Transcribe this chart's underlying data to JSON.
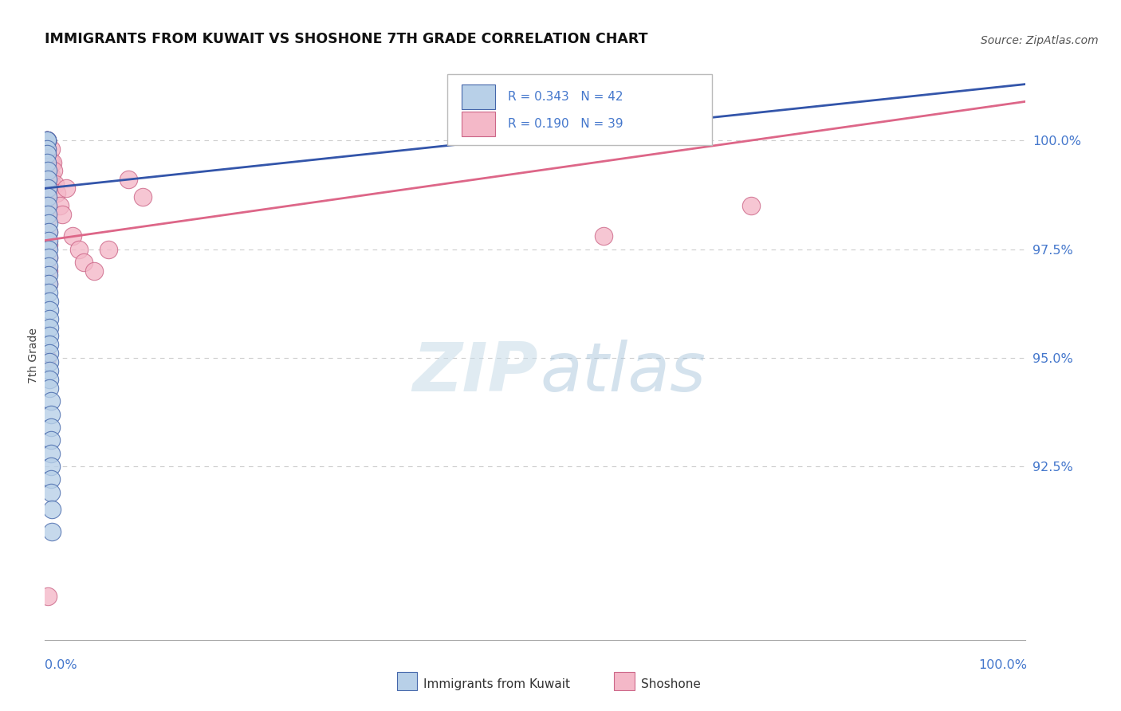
{
  "title": "IMMIGRANTS FROM KUWAIT VS SHOSHONE 7TH GRADE CORRELATION CHART",
  "source": "Source: ZipAtlas.com",
  "ylabel": "7th Grade",
  "legend_series1": "Immigrants from Kuwait",
  "legend_series2": "Shoshone",
  "R1": 0.343,
  "N1": 42,
  "R2": 0.19,
  "N2": 39,
  "blue_face_color": "#b8d0e8",
  "blue_edge_color": "#4466aa",
  "pink_face_color": "#f4b8c8",
  "pink_edge_color": "#cc6688",
  "blue_line_color": "#3355aa",
  "pink_line_color": "#dd6688",
  "watermark_zip": "ZIP",
  "watermark_atlas": "atlas",
  "blue_points": [
    [
      0.002,
      100.0
    ],
    [
      0.002,
      100.0
    ],
    [
      0.002,
      100.0
    ],
    [
      0.002,
      99.8
    ],
    [
      0.002,
      99.7
    ],
    [
      0.002,
      99.5
    ],
    [
      0.003,
      99.3
    ],
    [
      0.003,
      99.1
    ],
    [
      0.003,
      98.9
    ],
    [
      0.003,
      98.7
    ],
    [
      0.003,
      98.5
    ],
    [
      0.003,
      98.3
    ],
    [
      0.004,
      98.1
    ],
    [
      0.004,
      97.9
    ],
    [
      0.004,
      97.7
    ],
    [
      0.004,
      97.5
    ],
    [
      0.004,
      97.3
    ],
    [
      0.004,
      97.1
    ],
    [
      0.004,
      96.9
    ],
    [
      0.004,
      96.7
    ],
    [
      0.004,
      96.5
    ],
    [
      0.005,
      96.3
    ],
    [
      0.005,
      96.1
    ],
    [
      0.005,
      95.9
    ],
    [
      0.005,
      95.7
    ],
    [
      0.005,
      95.5
    ],
    [
      0.005,
      95.3
    ],
    [
      0.005,
      95.1
    ],
    [
      0.005,
      94.9
    ],
    [
      0.005,
      94.7
    ],
    [
      0.005,
      94.5
    ],
    [
      0.005,
      94.3
    ],
    [
      0.006,
      94.0
    ],
    [
      0.006,
      93.7
    ],
    [
      0.006,
      93.4
    ],
    [
      0.006,
      93.1
    ],
    [
      0.006,
      92.8
    ],
    [
      0.006,
      92.5
    ],
    [
      0.006,
      92.2
    ],
    [
      0.006,
      91.9
    ],
    [
      0.007,
      91.5
    ],
    [
      0.007,
      91.0
    ]
  ],
  "pink_points": [
    [
      0.002,
      100.0
    ],
    [
      0.002,
      100.0
    ],
    [
      0.002,
      100.0
    ],
    [
      0.002,
      99.8
    ],
    [
      0.002,
      99.5
    ],
    [
      0.002,
      99.3
    ],
    [
      0.003,
      99.1
    ],
    [
      0.003,
      98.8
    ],
    [
      0.003,
      98.5
    ],
    [
      0.003,
      98.2
    ],
    [
      0.004,
      97.9
    ],
    [
      0.004,
      97.6
    ],
    [
      0.004,
      97.3
    ],
    [
      0.004,
      97.0
    ],
    [
      0.004,
      96.7
    ],
    [
      0.005,
      99.5
    ],
    [
      0.005,
      99.2
    ],
    [
      0.005,
      98.9
    ],
    [
      0.006,
      99.8
    ],
    [
      0.006,
      99.5
    ],
    [
      0.006,
      99.2
    ],
    [
      0.007,
      99.0
    ],
    [
      0.008,
      99.5
    ],
    [
      0.009,
      99.3
    ],
    [
      0.01,
      99.0
    ],
    [
      0.012,
      98.8
    ],
    [
      0.015,
      98.5
    ],
    [
      0.018,
      98.3
    ],
    [
      0.022,
      98.9
    ],
    [
      0.028,
      97.8
    ],
    [
      0.035,
      97.5
    ],
    [
      0.04,
      97.2
    ],
    [
      0.05,
      97.0
    ],
    [
      0.065,
      97.5
    ],
    [
      0.085,
      99.1
    ],
    [
      0.1,
      98.7
    ],
    [
      0.57,
      97.8
    ],
    [
      0.72,
      98.5
    ],
    [
      0.002,
      95.0
    ],
    [
      0.003,
      89.5
    ]
  ],
  "blue_line_x": [
    0.0,
    1.0
  ],
  "blue_line_y": [
    98.9,
    101.3
  ],
  "pink_line_x": [
    0.0,
    1.0
  ],
  "pink_line_y": [
    97.7,
    100.9
  ],
  "xlim": [
    0.0,
    1.0
  ],
  "ylim": [
    88.5,
    101.6
  ],
  "yticks": [
    100.0,
    97.5,
    95.0,
    92.5
  ],
  "ytick_labels": [
    "100.0%",
    "97.5%",
    "95.0%",
    "92.5%"
  ],
  "xtick_left_label": "0.0%",
  "xtick_right_label": "100.0%",
  "axis_label_color": "#4477cc",
  "grid_color": "#cccccc"
}
